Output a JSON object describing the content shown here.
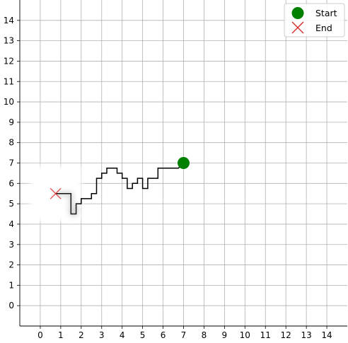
{
  "chart_data": {
    "type": "line",
    "title": "",
    "xlabel": "",
    "ylabel": "",
    "xlim": [
      -1,
      15
    ],
    "ylim": [
      -1,
      15
    ],
    "xticks": [
      0,
      1,
      2,
      3,
      4,
      5,
      6,
      7,
      8,
      9,
      10,
      11,
      12,
      13,
      14
    ],
    "yticks": [
      0,
      1,
      2,
      3,
      4,
      5,
      6,
      7,
      8,
      9,
      10,
      11,
      12,
      13,
      14
    ],
    "grid": true,
    "legend": {
      "placement": "top-right",
      "entries": [
        "Start",
        "End"
      ]
    },
    "path": [
      [
        7.0,
        7.0
      ],
      [
        6.75,
        6.75
      ],
      [
        5.75,
        6.75
      ],
      [
        5.75,
        6.25
      ],
      [
        5.25,
        6.25
      ],
      [
        5.25,
        5.75
      ],
      [
        5.0,
        5.75
      ],
      [
        5.0,
        6.25
      ],
      [
        4.75,
        6.25
      ],
      [
        4.75,
        6.0
      ],
      [
        4.5,
        6.0
      ],
      [
        4.5,
        5.75
      ],
      [
        4.25,
        5.75
      ],
      [
        4.25,
        6.25
      ],
      [
        4.0,
        6.25
      ],
      [
        4.0,
        6.5
      ],
      [
        3.75,
        6.5
      ],
      [
        3.75,
        6.75
      ],
      [
        3.25,
        6.75
      ],
      [
        3.25,
        6.5
      ],
      [
        3.0,
        6.5
      ],
      [
        3.0,
        6.25
      ],
      [
        2.75,
        6.25
      ],
      [
        2.75,
        5.5
      ],
      [
        2.5,
        5.5
      ],
      [
        2.5,
        5.25
      ],
      [
        2.0,
        5.25
      ],
      [
        2.0,
        5.0
      ],
      [
        1.75,
        5.0
      ],
      [
        1.75,
        4.5
      ],
      [
        1.5,
        4.5
      ],
      [
        1.5,
        5.5
      ],
      [
        0.75,
        5.5
      ]
    ],
    "start": {
      "label": "Start",
      "x": 7.0,
      "y": 7.0,
      "color": "#008000"
    },
    "end": {
      "label": "End",
      "x": 0.75,
      "y": 5.5,
      "color": "#d62728"
    },
    "blurred_region": {
      "x": [
        0.0,
        1.5
      ],
      "y": [
        4.5,
        6.5
      ]
    }
  }
}
